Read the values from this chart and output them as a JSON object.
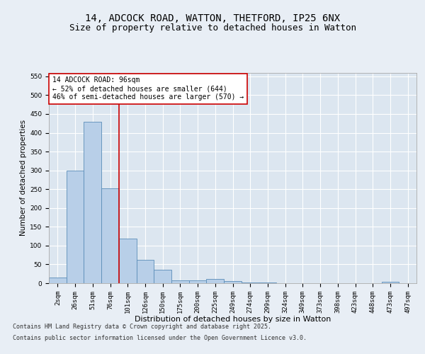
{
  "title_line1": "14, ADCOCK ROAD, WATTON, THETFORD, IP25 6NX",
  "title_line2": "Size of property relative to detached houses in Watton",
  "xlabel": "Distribution of detached houses by size in Watton",
  "ylabel": "Number of detached properties",
  "categories": [
    "2sqm",
    "26sqm",
    "51sqm",
    "76sqm",
    "101sqm",
    "126sqm",
    "150sqm",
    "175sqm",
    "200sqm",
    "225sqm",
    "249sqm",
    "274sqm",
    "299sqm",
    "324sqm",
    "349sqm",
    "373sqm",
    "398sqm",
    "423sqm",
    "448sqm",
    "473sqm",
    "497sqm"
  ],
  "values": [
    15,
    300,
    430,
    252,
    118,
    63,
    35,
    8,
    8,
    11,
    5,
    2,
    1,
    0,
    0,
    0,
    0,
    0,
    0,
    3,
    0
  ],
  "bar_color": "#b8cfe8",
  "bar_edge_color": "#5b8db8",
  "vline_x_index": 3,
  "vline_color": "#cc0000",
  "annotation_text": "14 ADCOCK ROAD: 96sqm\n← 52% of detached houses are smaller (644)\n46% of semi-detached houses are larger (570) →",
  "annotation_box_color": "#ffffff",
  "annotation_box_edge_color": "#cc0000",
  "ylim": [
    0,
    560
  ],
  "yticks": [
    0,
    50,
    100,
    150,
    200,
    250,
    300,
    350,
    400,
    450,
    500,
    550
  ],
  "bg_color": "#e8eef5",
  "plot_bg_color": "#dce6f0",
  "grid_color": "#ffffff",
  "footer_line1": "Contains HM Land Registry data © Crown copyright and database right 2025.",
  "footer_line2": "Contains public sector information licensed under the Open Government Licence v3.0.",
  "title_fontsize": 10,
  "subtitle_fontsize": 9,
  "tick_fontsize": 6.5,
  "xlabel_fontsize": 8,
  "ylabel_fontsize": 7.5,
  "annotation_fontsize": 7,
  "footer_fontsize": 6
}
